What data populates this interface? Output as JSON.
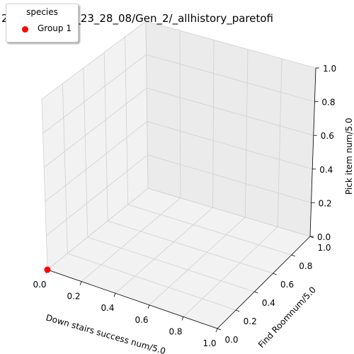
{
  "chart_data": {
    "type": "scatter3d",
    "title": "2___20_10_17_23_28_08/Gen_2/_allhistory_paretofi",
    "xlabel": "Down stairs success num/5.0",
    "ylabel": "Find Roomnum/5.0",
    "zlabel": "Pick item num/5.0",
    "xlim": [
      0,
      1
    ],
    "ylim": [
      0,
      1
    ],
    "zlim": [
      0,
      1
    ],
    "ticks": [
      "0.0",
      "0.2",
      "0.4",
      "0.6",
      "0.8",
      "1.0"
    ],
    "grid": true,
    "legend": {
      "title": "species",
      "placement": "top-left"
    },
    "series": [
      {
        "name": "Group 1",
        "color": "#ff0000",
        "points": [
          {
            "x": 0,
            "y": 1,
            "z": 0
          }
        ]
      }
    ]
  }
}
